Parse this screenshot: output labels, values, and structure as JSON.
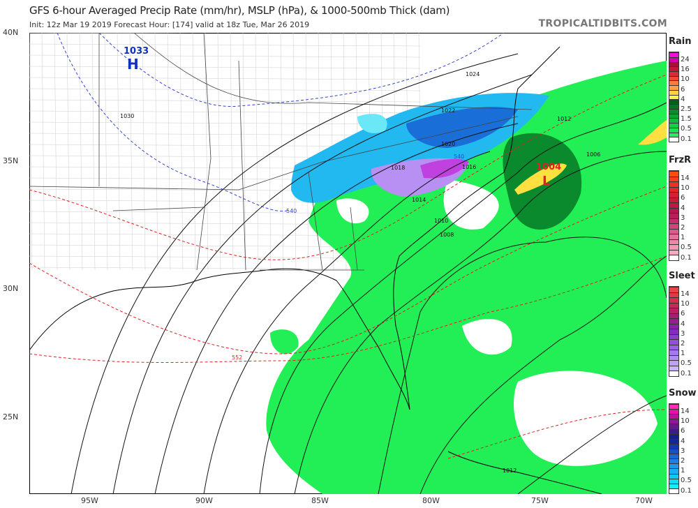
{
  "header": {
    "title": "GFS 6-hour Averaged Precip Rate (mm/hr), MSLP (hPa), & 1000-500mb Thick (dam)",
    "subtitle": "Init: 12z Mar 19 2019   Forecast Hour: [174]   valid at 18z Tue, Mar 26 2019",
    "brand": "TROPICALTIDBITS.COM"
  },
  "axes": {
    "lat_labels": [
      "40N",
      "35N",
      "30N",
      "25N"
    ],
    "lon_labels": [
      "95W",
      "90W",
      "85W",
      "80W",
      "75W",
      "70W"
    ]
  },
  "pressure_centers": [
    {
      "type": "H",
      "value": "1033",
      "color": "#1133bb"
    },
    {
      "type": "L",
      "value": "1004",
      "color": "#dd2222"
    }
  ],
  "isobar_labels": [
    "1024",
    "1022",
    "1020",
    "1018",
    "1016",
    "1014",
    "1012",
    "1010",
    "1008",
    "1006",
    "1030",
    "1012"
  ],
  "thickness_labels": [
    "540",
    "540",
    "552"
  ],
  "legends": [
    {
      "name": "Rain",
      "ticks": [
        "24",
        "16",
        "10",
        "6",
        "4",
        "2.5",
        "1.5",
        "0.5",
        "0.1"
      ],
      "colors": [
        "#ffffff",
        "#22f060",
        "#1ee054",
        "#19cc48",
        "#14b83e",
        "#10a034",
        "#0c8a2c",
        "#087424",
        "#055e1c",
        "#fff04a",
        "#ffd040",
        "#ffa040",
        "#ff7a3a",
        "#f04a36",
        "#dc2a38",
        "#c4163a",
        "#a8103a",
        "#d000b0",
        "#f010d8"
      ]
    },
    {
      "name": "FrzR",
      "ticks": [
        "14",
        "10",
        "6",
        "4",
        "3",
        "2",
        "1",
        "0.5",
        "0.1"
      ],
      "colors": [
        "#ffffff",
        "#f6a8c0",
        "#f298b4",
        "#ee86a8",
        "#e6709a",
        "#dc5a8c",
        "#d0447c",
        "#c4306c",
        "#b81e5c",
        "#b01a50",
        "#bc1a44",
        "#c81c3a",
        "#d42030",
        "#e02828",
        "#ea3220",
        "#f4401a",
        "#ff4c10"
      ]
    },
    {
      "name": "Sleet",
      "ticks": [
        "14",
        "10",
        "6",
        "4",
        "3",
        "2",
        "1",
        "0.5",
        "0.1"
      ],
      "colors": [
        "#ffffff",
        "#c8b4ff",
        "#bca0fa",
        "#b08cf4",
        "#a478ee",
        "#9a62e6",
        "#9050dc",
        "#8a3ece",
        "#842cc0",
        "#8a22aa",
        "#94208e",
        "#a42076",
        "#b42464",
        "#c42a58",
        "#d4304e",
        "#e03a48",
        "#e84448"
      ]
    },
    {
      "name": "Snow",
      "ticks": [
        "14",
        "10",
        "6",
        "4",
        "3",
        "2",
        "1",
        "0.5",
        "0.1"
      ],
      "colors": [
        "#ffffff",
        "#10f0f8",
        "#10dcf8",
        "#10c8f4",
        "#18b0f0",
        "#1c98ec",
        "#1c80e4",
        "#1a68d8",
        "#1650c8",
        "#1238b4",
        "#10289c",
        "#142088",
        "#3a1c8a",
        "#661a8e",
        "#901896",
        "#bc10a0",
        "#e810a8",
        "#ff2ab4"
      ]
    }
  ]
}
